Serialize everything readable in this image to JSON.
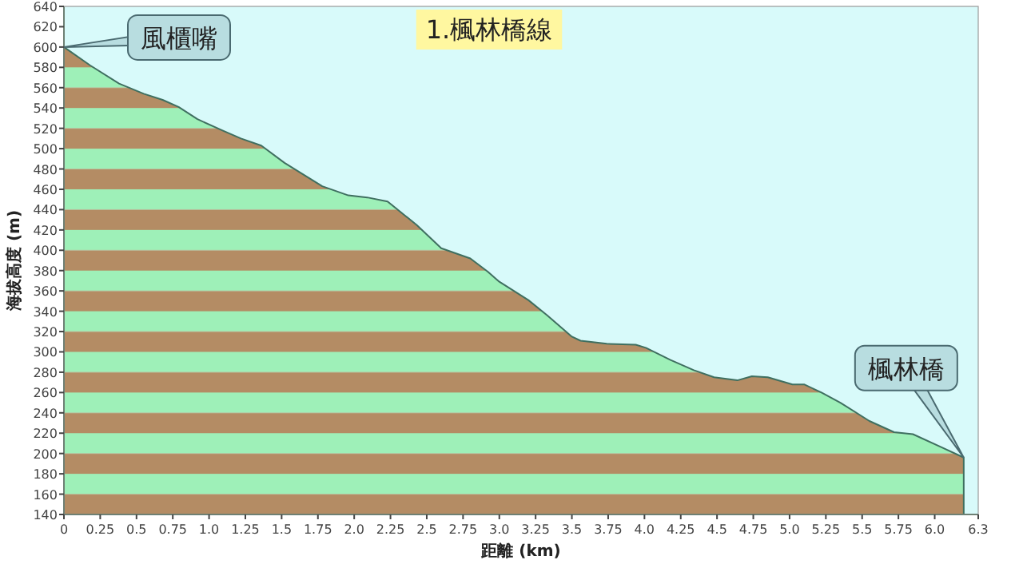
{
  "chart_data": {
    "type": "area",
    "title": "1.楓林橋線",
    "xlabel": "距離 (km)",
    "ylabel": "海拔高度 (m)",
    "x": [
      0,
      0.18,
      0.38,
      0.55,
      0.68,
      0.79,
      0.92,
      1.09,
      1.22,
      1.36,
      1.52,
      1.78,
      1.96,
      2.09,
      2.23,
      2.43,
      2.6,
      2.8,
      2.92,
      3.0,
      3.2,
      3.33,
      3.5,
      3.56,
      3.74,
      3.94,
      4.01,
      4.18,
      4.34,
      4.48,
      4.64,
      4.74,
      4.85,
      5.02,
      5.1,
      5.22,
      5.35,
      5.55,
      5.72,
      5.85,
      6.05,
      6.2
    ],
    "series": [
      {
        "color": "#3f6f60",
        "values": [
          600,
          582,
          564,
          554,
          548,
          541,
          529,
          518,
          510,
          503,
          486,
          463,
          454,
          452,
          448,
          425,
          402,
          392,
          379,
          369,
          351,
          336,
          315,
          311,
          308,
          307,
          304,
          292,
          282,
          275,
          272,
          276,
          275,
          268,
          268,
          260,
          250,
          232,
          221,
          219,
          206,
          196
        ]
      }
    ],
    "xlim": [
      0,
      6.3
    ],
    "ylim": [
      140,
      640
    ],
    "xticks": [
      0,
      0.25,
      0.5,
      0.75,
      {
        "value": 1,
        "label": "1.0"
      },
      1.25,
      1.5,
      1.75,
      {
        "value": 2,
        "label": "2.0"
      },
      2.25,
      2.5,
      2.75,
      {
        "value": 3,
        "label": "3.0"
      },
      3.25,
      3.5,
      3.75,
      {
        "value": 4,
        "label": "4.0"
      },
      4.25,
      4.5,
      4.75,
      {
        "value": 5,
        "label": "5.0"
      },
      5.25,
      5.5,
      5.75,
      {
        "value": 6,
        "label": "6.0"
      },
      6.3
    ],
    "yticks": [
      140,
      160,
      180,
      200,
      220,
      240,
      260,
      280,
      300,
      320,
      340,
      360,
      380,
      400,
      420,
      440,
      460,
      480,
      500,
      520,
      540,
      560,
      580,
      600,
      620,
      640
    ],
    "annotations": [
      {
        "text": "風櫃嘴",
        "x": 0,
        "y": 600
      },
      {
        "text": "楓林橋",
        "x": 6.2,
        "y": 196
      }
    ],
    "grid": false
  }
}
